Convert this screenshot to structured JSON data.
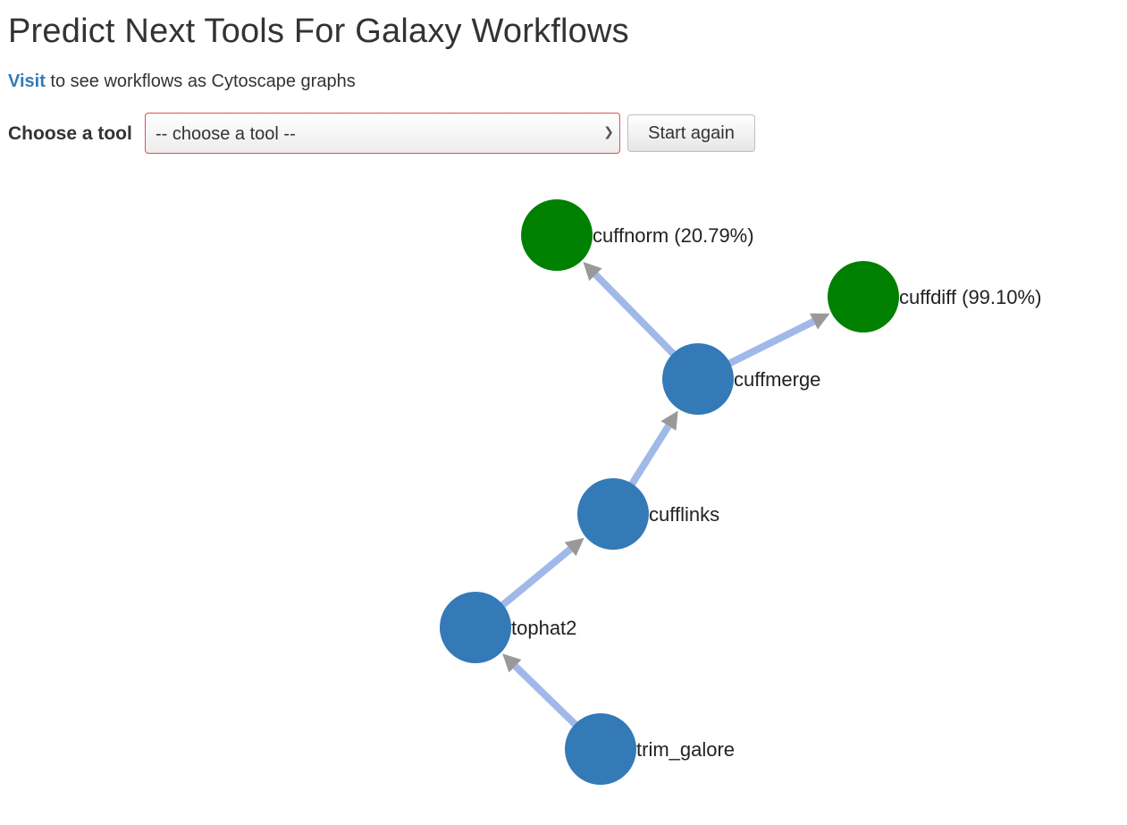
{
  "header": {
    "title": "Predict Next Tools For Galaxy Workflows"
  },
  "visit": {
    "link_text": "Visit",
    "rest_text": " to see workflows as Cytoscape graphs"
  },
  "tool_picker": {
    "label": "Choose a tool",
    "selected": "-- choose a tool --",
    "button_label": "Start again"
  },
  "graph": {
    "colors": {
      "input_node": "#337ab7",
      "predicted_node": "#008000",
      "edge": "#a0b9e8",
      "arrow": "#999999"
    },
    "nodes": [
      {
        "id": "trim_galore",
        "label": "trim_galore",
        "kind": "input"
      },
      {
        "id": "tophat2",
        "label": "tophat2",
        "kind": "input"
      },
      {
        "id": "cufflinks",
        "label": "cufflinks",
        "kind": "input"
      },
      {
        "id": "cuffmerge",
        "label": "cuffmerge",
        "kind": "input"
      },
      {
        "id": "cuffnorm",
        "label": "cuffnorm  (20.79%)",
        "kind": "predicted"
      },
      {
        "id": "cuffdiff",
        "label": "cuffdiff  (99.10%)",
        "kind": "predicted"
      }
    ],
    "edges": [
      {
        "from": "trim_galore",
        "to": "tophat2"
      },
      {
        "from": "tophat2",
        "to": "cufflinks"
      },
      {
        "from": "cufflinks",
        "to": "cuffmerge"
      },
      {
        "from": "cuffmerge",
        "to": "cuffnorm"
      },
      {
        "from": "cuffmerge",
        "to": "cuffdiff"
      }
    ]
  }
}
